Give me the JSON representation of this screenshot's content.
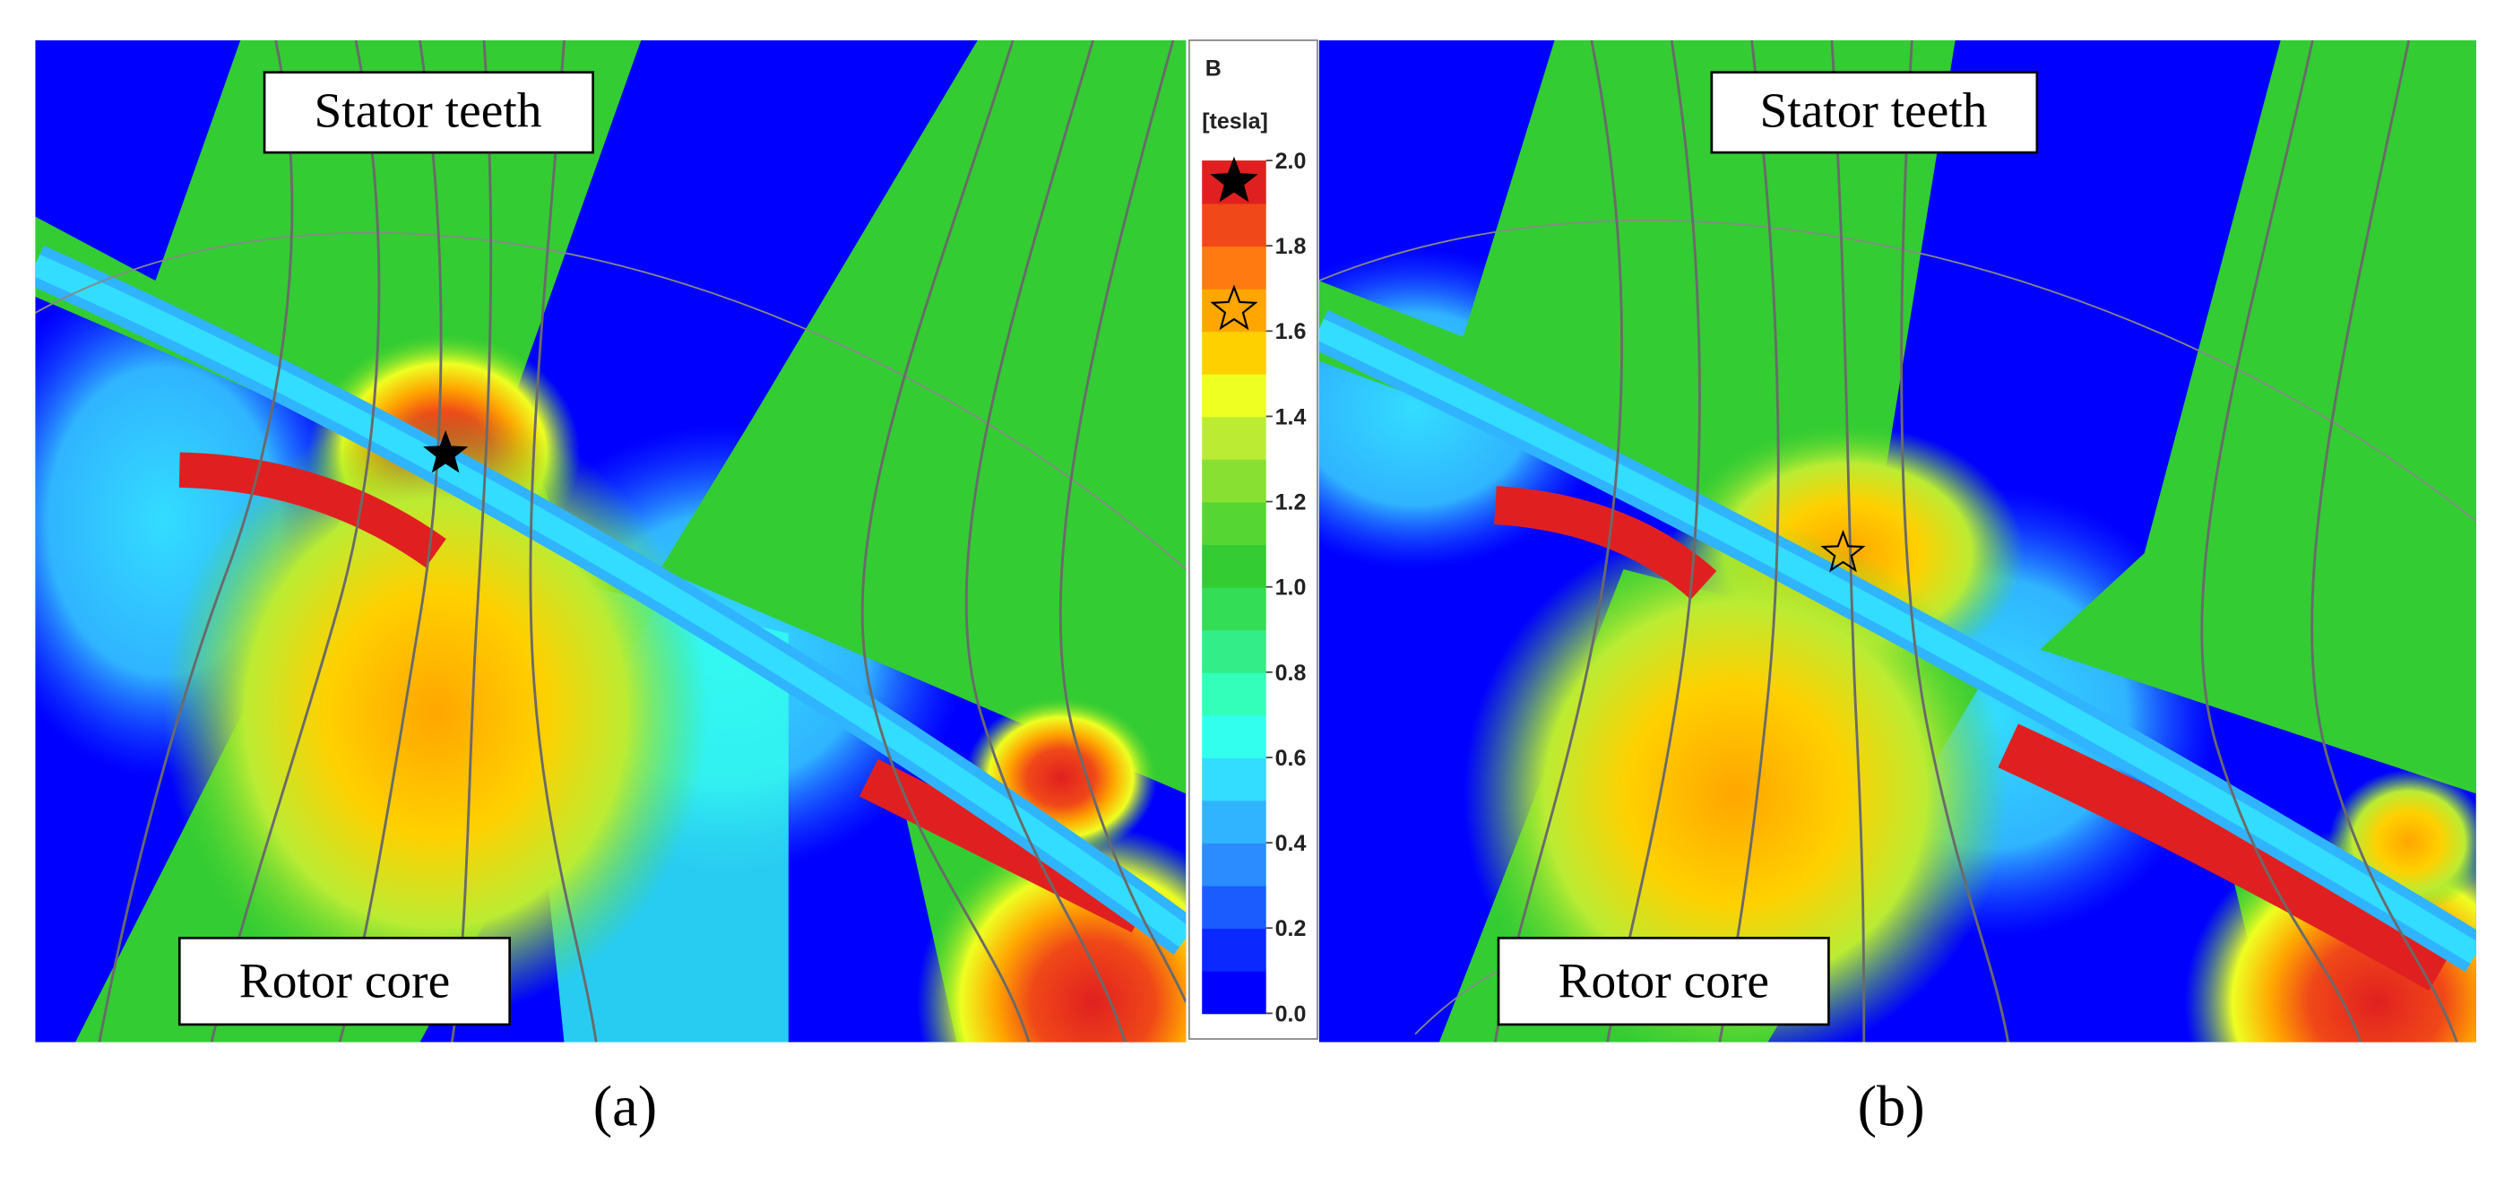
{
  "panels": [
    {
      "label": "(a)",
      "stator_label": "Stator teeth",
      "rotor_label": "Rotor core"
    },
    {
      "label": "(b)",
      "stator_label": "Stator teeth",
      "rotor_label": "Rotor core"
    }
  ],
  "colorbar": {
    "title": "B",
    "unit": "[tesla]",
    "ticks": [
      {
        "value": 0,
        "label": "0.0"
      },
      0.2,
      0.4,
      0.6,
      0.8,
      {
        "value": 1,
        "label": "1.0"
      },
      1.2,
      1.4,
      1.6,
      1.8,
      {
        "value": 2,
        "label": "2.0"
      }
    ],
    "colors": [
      "#0000ff",
      "#0a28ff",
      "#1a5cff",
      "#2a8cff",
      "#30b4ff",
      "#33ddff",
      "#33ffee",
      "#33ffbb",
      "#33ee88",
      "#33dd55",
      "#33cc33",
      "#55d633",
      "#88e033",
      "#bbec33",
      "#eeff22",
      "#ffd000",
      "#ffa600",
      "#ff7a10",
      "#f04818",
      "#e02020"
    ],
    "stars": [
      {
        "value": 1.95,
        "fill": "#000000"
      },
      {
        "value": 1.65,
        "fill": "none"
      }
    ]
  }
}
